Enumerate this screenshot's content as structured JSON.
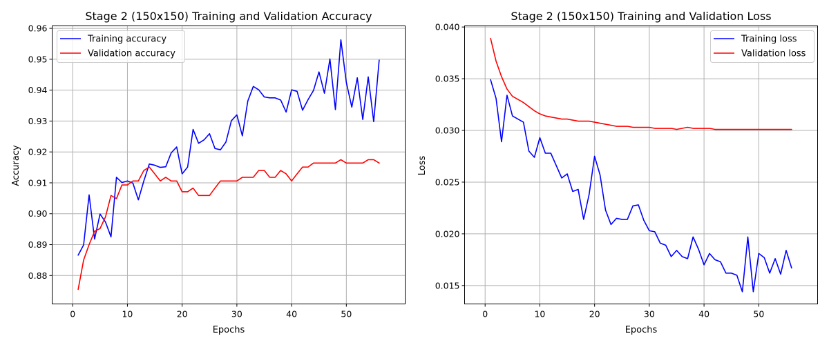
{
  "chart_data": [
    {
      "type": "line",
      "title": "Stage 2 (150x150) Training and Validation Accuracy",
      "xlabel": "Epochs",
      "ylabel": "Accuracy",
      "xlim": [
        -3.75,
        60.75
      ],
      "ylim": [
        0.8708,
        0.9608
      ],
      "xticks": [
        0,
        10,
        20,
        30,
        40,
        50
      ],
      "yticks": [
        0.88,
        0.89,
        0.9,
        0.91,
        0.92,
        0.93,
        0.94,
        0.95,
        0.96
      ],
      "ytick_labels": [
        "0.88",
        "0.89",
        "0.90",
        "0.91",
        "0.92",
        "0.93",
        "0.94",
        "0.95",
        "0.96"
      ],
      "grid": true,
      "legend": "top-left",
      "x": [
        1,
        2,
        3,
        4,
        5,
        6,
        7,
        8,
        9,
        10,
        11,
        12,
        13,
        14,
        15,
        16,
        17,
        18,
        19,
        20,
        21,
        22,
        23,
        24,
        25,
        26,
        27,
        28,
        29,
        30,
        31,
        32,
        33,
        34,
        35,
        36,
        37,
        38,
        39,
        40,
        41,
        42,
        43,
        44,
        45,
        46,
        47,
        48,
        49,
        50,
        51,
        52,
        53,
        54,
        55,
        56
      ],
      "series": [
        {
          "name": "Training accuracy",
          "color": "#0000ff",
          "values": [
            0.8866,
            0.8899,
            0.9061,
            0.8918,
            0.8999,
            0.8973,
            0.8925,
            0.9118,
            0.9101,
            0.9106,
            0.9099,
            0.9045,
            0.9106,
            0.9161,
            0.9157,
            0.915,
            0.9152,
            0.9197,
            0.9216,
            0.9129,
            0.9151,
            0.9273,
            0.9228,
            0.9239,
            0.9259,
            0.9211,
            0.9207,
            0.9232,
            0.9301,
            0.932,
            0.9252,
            0.9365,
            0.9412,
            0.9401,
            0.9378,
            0.9375,
            0.9375,
            0.9368,
            0.9329,
            0.9401,
            0.9396,
            0.9335,
            0.9369,
            0.9399,
            0.9459,
            0.939,
            0.9501,
            0.9337,
            0.9563,
            0.9425,
            0.9345,
            0.944,
            0.9305,
            0.9443,
            0.9298,
            0.9497
          ]
        },
        {
          "name": "Validation accuracy",
          "color": "#ff0000",
          "values": [
            0.8755,
            0.885,
            0.89,
            0.8943,
            0.8952,
            0.899,
            0.9059,
            0.9049,
            0.9093,
            0.9093,
            0.9106,
            0.9106,
            0.914,
            0.9151,
            0.9129,
            0.9106,
            0.9118,
            0.9106,
            0.9106,
            0.9071,
            0.9071,
            0.9083,
            0.9059,
            0.9059,
            0.9059,
            0.9083,
            0.9106,
            0.9106,
            0.9106,
            0.9106,
            0.9118,
            0.9118,
            0.9118,
            0.914,
            0.914,
            0.9118,
            0.9118,
            0.914,
            0.9129,
            0.9106,
            0.9129,
            0.9151,
            0.9151,
            0.9164,
            0.9164,
            0.9164,
            0.9164,
            0.9164,
            0.9175,
            0.9164,
            0.9164,
            0.9164,
            0.9164,
            0.9175,
            0.9175,
            0.9164
          ]
        }
      ]
    },
    {
      "type": "line",
      "title": "Stage 2 (150x150) Training and Validation Loss",
      "xlabel": "Epochs",
      "ylabel": "Loss",
      "xlim": [
        -3.75,
        60.75
      ],
      "ylim": [
        0.01322,
        0.04011
      ],
      "xticks": [
        0,
        10,
        20,
        30,
        40,
        50
      ],
      "yticks": [
        0.015,
        0.02,
        0.025,
        0.03,
        0.035,
        0.04
      ],
      "ytick_labels": [
        "0.015",
        "0.020",
        "0.025",
        "0.030",
        "0.035",
        "0.040"
      ],
      "grid": true,
      "legend": "top-right",
      "x": [
        1,
        2,
        3,
        4,
        5,
        6,
        7,
        8,
        9,
        10,
        11,
        12,
        13,
        14,
        15,
        16,
        17,
        18,
        19,
        20,
        21,
        22,
        23,
        24,
        25,
        26,
        27,
        28,
        29,
        30,
        31,
        32,
        33,
        34,
        35,
        36,
        37,
        38,
        39,
        40,
        41,
        42,
        43,
        44,
        45,
        46,
        47,
        48,
        49,
        50,
        51,
        52,
        53,
        54,
        55,
        56
      ],
      "series": [
        {
          "name": "Training loss",
          "color": "#0000ff",
          "values": [
            0.0349,
            0.0331,
            0.0289,
            0.0334,
            0.0314,
            0.0311,
            0.0308,
            0.028,
            0.0274,
            0.0293,
            0.0278,
            0.0278,
            0.0266,
            0.0254,
            0.0258,
            0.0241,
            0.0243,
            0.0214,
            0.0238,
            0.0275,
            0.0257,
            0.0223,
            0.0209,
            0.0215,
            0.0214,
            0.0214,
            0.0227,
            0.0228,
            0.0213,
            0.0203,
            0.0202,
            0.0191,
            0.0189,
            0.0178,
            0.0184,
            0.0178,
            0.0176,
            0.0197,
            0.0185,
            0.017,
            0.0181,
            0.0175,
            0.0173,
            0.0162,
            0.0162,
            0.016,
            0.0144,
            0.0197,
            0.0144,
            0.0181,
            0.0177,
            0.0162,
            0.0176,
            0.0161,
            0.0184,
            0.0167
          ]
        },
        {
          "name": "Validation loss",
          "color": "#ff0000",
          "values": [
            0.0389,
            0.0367,
            0.0352,
            0.034,
            0.0333,
            0.033,
            0.0327,
            0.0323,
            0.0319,
            0.0316,
            0.0314,
            0.0313,
            0.0312,
            0.0311,
            0.0311,
            0.031,
            0.0309,
            0.0309,
            0.0309,
            0.0308,
            0.0307,
            0.0306,
            0.0305,
            0.0304,
            0.0304,
            0.0304,
            0.0303,
            0.0303,
            0.0303,
            0.0303,
            0.0302,
            0.0302,
            0.0302,
            0.0302,
            0.0301,
            0.0302,
            0.0303,
            0.0302,
            0.0302,
            0.0302,
            0.0302,
            0.0301,
            0.0301,
            0.0301,
            0.0301,
            0.0301,
            0.0301,
            0.0301,
            0.0301,
            0.0301,
            0.0301,
            0.0301,
            0.0301,
            0.0301,
            0.0301,
            0.0301
          ]
        }
      ]
    }
  ]
}
